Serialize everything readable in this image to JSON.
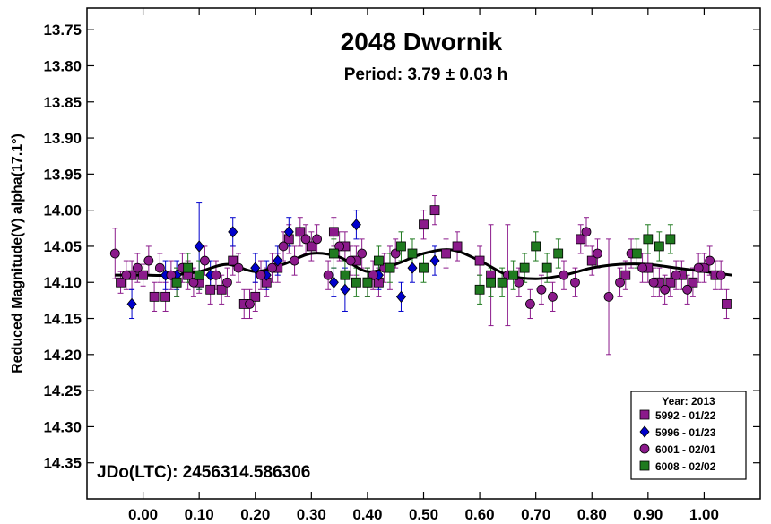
{
  "chart_data": {
    "type": "scatter",
    "title": "2048 Dwornik",
    "subtitle": "Period: 3.79 ± 0.03 h",
    "ylabel": "Reduced Magnitude(V) alpha(17.1°)",
    "xlabel": "",
    "annotation": "JDo(LTC): 2456314.586306",
    "xlim": [
      -0.1,
      1.1
    ],
    "ylim": [
      14.4,
      13.72
    ],
    "y_inverted": true,
    "x_ticks": [
      "0.00",
      "0.10",
      "0.20",
      "0.30",
      "0.40",
      "0.50",
      "0.60",
      "0.70",
      "0.80",
      "0.90",
      "1.00"
    ],
    "y_ticks": [
      "13.75",
      "13.80",
      "13.85",
      "13.90",
      "13.95",
      "14.00",
      "14.05",
      "14.10",
      "14.15",
      "14.20",
      "14.25",
      "14.30",
      "14.35"
    ],
    "legend": {
      "title": "Year: 2013",
      "position": "bottom-right"
    },
    "fit_curve": {
      "x": [
        -0.05,
        0.0,
        0.05,
        0.1,
        0.15,
        0.2,
        0.25,
        0.3,
        0.35,
        0.4,
        0.45,
        0.5,
        0.55,
        0.6,
        0.65,
        0.7,
        0.75,
        0.8,
        0.85,
        0.9,
        0.95,
        1.0,
        1.05
      ],
      "y": [
        14.09,
        14.09,
        14.09,
        14.085,
        14.075,
        14.085,
        14.075,
        14.06,
        14.065,
        14.085,
        14.075,
        14.06,
        14.055,
        14.07,
        14.09,
        14.095,
        14.09,
        14.08,
        14.075,
        14.075,
        14.08,
        14.085,
        14.09
      ]
    },
    "series": [
      {
        "name": "5992 - 01/22",
        "marker": "square",
        "color": "#8b1a8b",
        "x": [
          -0.04,
          -0.02,
          0.0,
          0.02,
          0.04,
          0.06,
          0.08,
          0.1,
          0.12,
          0.14,
          0.16,
          0.18,
          0.2,
          0.22,
          0.24,
          0.26,
          0.28,
          0.3,
          0.34,
          0.36,
          0.38,
          0.4,
          0.42,
          0.44,
          0.5,
          0.52,
          0.54,
          0.56,
          0.6,
          0.62,
          0.78,
          0.8,
          0.86,
          0.9,
          0.92,
          0.94,
          0.96,
          0.98,
          1.0,
          1.02,
          1.04
        ],
        "y": [
          14.1,
          14.09,
          14.09,
          14.12,
          14.12,
          14.1,
          14.09,
          14.1,
          14.11,
          14.11,
          14.07,
          14.13,
          14.12,
          14.1,
          14.08,
          14.04,
          14.03,
          14.05,
          14.03,
          14.05,
          14.07,
          14.1,
          14.1,
          14.08,
          14.02,
          14.0,
          14.06,
          14.05,
          14.07,
          14.09,
          14.04,
          14.07,
          14.09,
          14.08,
          14.1,
          14.1,
          14.09,
          14.1,
          14.08,
          14.09,
          14.13
        ],
        "err": [
          0.015,
          0.02,
          0.015,
          0.02,
          0.02,
          0.02,
          0.02,
          0.015,
          0.02,
          0.02,
          0.02,
          0.02,
          0.02,
          0.02,
          0.02,
          0.02,
          0.02,
          0.02,
          0.02,
          0.02,
          0.02,
          0.02,
          0.02,
          0.03,
          0.02,
          0.02,
          0.02,
          0.02,
          0.02,
          0.07,
          0.02,
          0.02,
          0.02,
          0.02,
          0.02,
          0.02,
          0.02,
          0.02,
          0.02,
          0.02,
          0.02
        ]
      },
      {
        "name": "5996 - 01/23",
        "marker": "diamond",
        "color": "#0000cc",
        "x": [
          -0.02,
          0.04,
          0.06,
          0.1,
          0.12,
          0.16,
          0.2,
          0.22,
          0.24,
          0.26,
          0.34,
          0.36,
          0.38,
          0.42,
          0.46,
          0.48,
          0.52
        ],
        "y": [
          14.13,
          14.09,
          14.09,
          14.05,
          14.09,
          14.03,
          14.08,
          14.09,
          14.07,
          14.03,
          14.1,
          14.11,
          14.02,
          14.09,
          14.12,
          14.08,
          14.07
        ],
        "err": [
          0.02,
          0.02,
          0.02,
          0.06,
          0.02,
          0.02,
          0.02,
          0.02,
          0.02,
          0.02,
          0.02,
          0.03,
          0.02,
          0.02,
          0.02,
          0.02,
          0.02
        ]
      },
      {
        "name": "6001 - 02/01",
        "marker": "circle",
        "color": "#8b1a8b",
        "x": [
          -0.05,
          -0.03,
          -0.01,
          0.01,
          0.03,
          0.05,
          0.07,
          0.09,
          0.11,
          0.13,
          0.15,
          0.17,
          0.19,
          0.21,
          0.23,
          0.25,
          0.27,
          0.29,
          0.31,
          0.33,
          0.35,
          0.37,
          0.39,
          0.41,
          0.43,
          0.45,
          0.65,
          0.67,
          0.69,
          0.71,
          0.73,
          0.75,
          0.77,
          0.79,
          0.81,
          0.83,
          0.85,
          0.87,
          0.89,
          0.91,
          0.93,
          0.95,
          0.97,
          0.99,
          1.01,
          1.03
        ],
        "y": [
          14.06,
          14.09,
          14.08,
          14.07,
          14.08,
          14.09,
          14.08,
          14.1,
          14.07,
          14.09,
          14.1,
          14.08,
          14.13,
          14.09,
          14.08,
          14.05,
          14.07,
          14.04,
          14.04,
          14.09,
          14.05,
          14.07,
          14.06,
          14.09,
          14.08,
          14.06,
          14.09,
          14.1,
          14.13,
          14.11,
          14.12,
          14.09,
          14.1,
          14.03,
          14.06,
          14.12,
          14.1,
          14.06,
          14.08,
          14.1,
          14.11,
          14.09,
          14.11,
          14.08,
          14.07,
          14.09
        ],
        "err": [
          0.035,
          0.02,
          0.02,
          0.02,
          0.02,
          0.02,
          0.02,
          0.02,
          0.02,
          0.02,
          0.02,
          0.02,
          0.02,
          0.02,
          0.02,
          0.02,
          0.02,
          0.02,
          0.02,
          0.02,
          0.02,
          0.02,
          0.02,
          0.02,
          0.02,
          0.02,
          0.07,
          0.02,
          0.02,
          0.02,
          0.02,
          0.02,
          0.02,
          0.02,
          0.02,
          0.08,
          0.02,
          0.02,
          0.02,
          0.02,
          0.02,
          0.02,
          0.02,
          0.02,
          0.02,
          0.02
        ]
      },
      {
        "name": "6008 - 02/02",
        "marker": "square",
        "color": "#1f7a1f",
        "x": [
          0.06,
          0.08,
          0.1,
          0.34,
          0.36,
          0.38,
          0.4,
          0.42,
          0.44,
          0.46,
          0.48,
          0.5,
          0.6,
          0.62,
          0.64,
          0.66,
          0.68,
          0.7,
          0.72,
          0.74,
          0.88,
          0.9,
          0.92,
          0.94
        ],
        "y": [
          14.1,
          14.08,
          14.09,
          14.06,
          14.09,
          14.1,
          14.1,
          14.07,
          14.08,
          14.05,
          14.06,
          14.08,
          14.11,
          14.1,
          14.1,
          14.09,
          14.08,
          14.05,
          14.08,
          14.06,
          14.06,
          14.04,
          14.05,
          14.04
        ],
        "err": [
          0.02,
          0.02,
          0.02,
          0.02,
          0.02,
          0.02,
          0.02,
          0.02,
          0.02,
          0.02,
          0.02,
          0.02,
          0.02,
          0.02,
          0.02,
          0.02,
          0.02,
          0.02,
          0.02,
          0.02,
          0.02,
          0.02,
          0.02,
          0.02
        ]
      }
    ]
  }
}
